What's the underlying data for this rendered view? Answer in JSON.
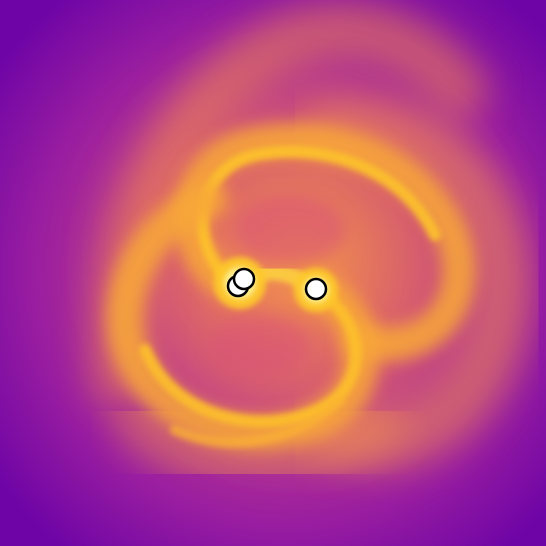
{
  "image": {
    "description_colors": {
      "background": "#7d0aa8",
      "mid": "#c8447a",
      "glow": "#f08a4a",
      "hot": "#fdc02a",
      "core": "#fff5a0"
    },
    "objects": [
      {
        "name": "left-particle-pair"
      },
      {
        "name": "right-particle"
      }
    ]
  }
}
